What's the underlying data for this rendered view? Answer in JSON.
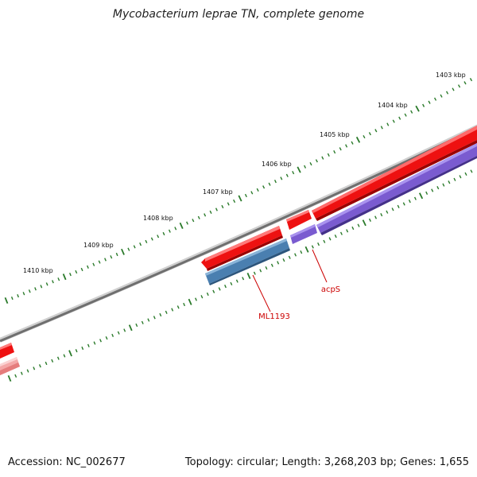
{
  "title": "Mycobacterium leprae TN, complete genome",
  "footer": {
    "accession": "Accession: NC_002677",
    "info": "Topology: circular; Length: 3,268,203 bp; Genes: 1,655"
  },
  "ruler_labels": [
    "1403 kbp",
    "1404 kbp",
    "1405 kbp",
    "1406 kbp",
    "1407 kbp",
    "1408 kbp",
    "1409 kbp",
    "1410 kbp"
  ],
  "genes": [
    {
      "label": "ML1193",
      "color": "#d21616",
      "strand": "forward"
    },
    {
      "label": "acpS",
      "color": "#d21616",
      "strand": "forward"
    }
  ],
  "colors": {
    "backbone": "#7a7a7a",
    "gene_forward": "#ee1111",
    "cds_forward": "#7a5bd0",
    "cds_blue": "#4a7fb0",
    "gene_faded": "#f08a8a",
    "cds_faded": "#f4a8a8",
    "ticks": "#2a7a2a",
    "label": "#cc0000"
  }
}
